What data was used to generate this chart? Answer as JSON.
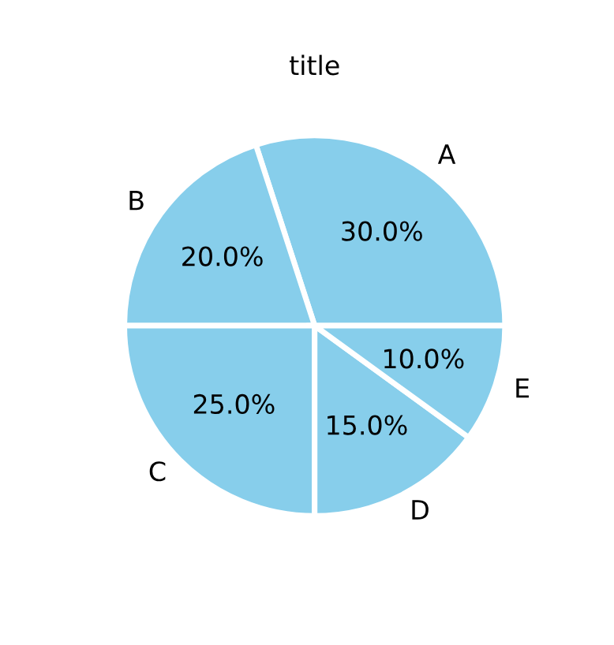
{
  "chart_data": {
    "type": "pie",
    "title": "title",
    "categories": [
      "A",
      "B",
      "C",
      "D",
      "E"
    ],
    "values": [
      30,
      20,
      25,
      15,
      10
    ],
    "colors": [
      "#87ceeb",
      "#87ceeb",
      "#87ceeb",
      "#87ceeb",
      "#87ceeb"
    ],
    "value_labels": [
      "30.0%",
      "20.0%",
      "25.0%",
      "15.0%",
      "10.0%"
    ]
  }
}
